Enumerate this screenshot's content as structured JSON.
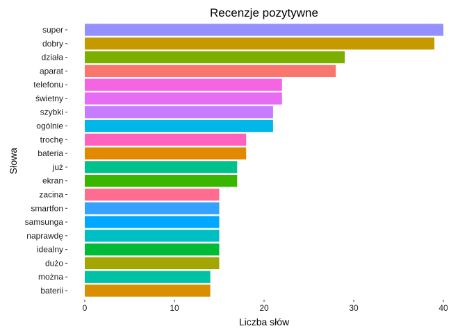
{
  "chart_data": {
    "type": "bar",
    "orientation": "horizontal",
    "title": "Recenzje pozytywne",
    "xlabel": "Liczba słów",
    "ylabel": "Słowa",
    "xlim": [
      0,
      40
    ],
    "x_ticks": [
      0,
      10,
      20,
      30,
      40
    ],
    "grid": false,
    "legend": "none",
    "categories": [
      "super",
      "dobry",
      "działa",
      "aparat",
      "telefonu",
      "świetny",
      "szybki",
      "ogólnie",
      "trochę",
      "bateria",
      "już",
      "ekran",
      "zacina",
      "smartfon",
      "samsunga",
      "naprawdę",
      "idealny",
      "dużo",
      "można",
      "baterii"
    ],
    "values": [
      40,
      39,
      29,
      28,
      22,
      22,
      21,
      21,
      18,
      18,
      17,
      17,
      15,
      15,
      15,
      15,
      15,
      15,
      14,
      14
    ],
    "colors": [
      "#9590FF",
      "#C49A00",
      "#7CAE00",
      "#F8766D",
      "#F564E3",
      "#E76BF3",
      "#C77CFF",
      "#00B8E7",
      "#FF62BC",
      "#E38900",
      "#00C08B",
      "#39B600",
      "#FF6C91",
      "#35A2FF",
      "#00A9FF",
      "#00BFC4",
      "#00BA38",
      "#A3A500",
      "#00C1A3",
      "#D89000"
    ]
  }
}
